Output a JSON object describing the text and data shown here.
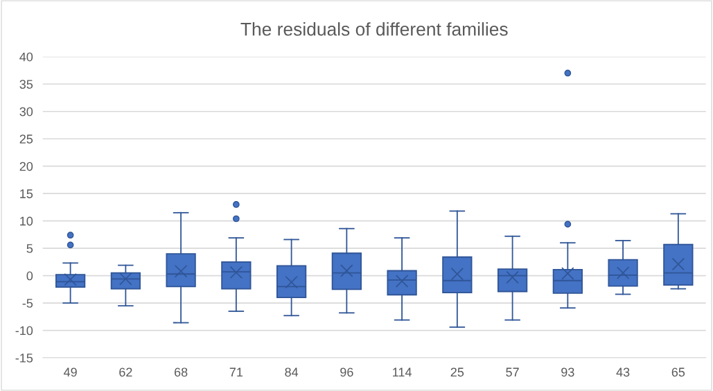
{
  "chart_data": {
    "type": "box",
    "title": "The residuals of different families",
    "categories": [
      "49",
      "62",
      "68",
      "71",
      "84",
      "96",
      "114",
      "25",
      "57",
      "93",
      "43",
      "65"
    ],
    "boxes": [
      {
        "low": -5.0,
        "q1": -2.1,
        "median": -1.1,
        "q3": 0.2,
        "high": 2.3,
        "mean": -0.7,
        "outliers": [
          7.4,
          5.6
        ]
      },
      {
        "low": -5.5,
        "q1": -2.4,
        "median": -0.6,
        "q3": 0.5,
        "high": 1.9,
        "mean": -0.6
      },
      {
        "low": -8.6,
        "q1": -2.0,
        "median": 0.3,
        "q3": 4.0,
        "high": 11.5,
        "mean": 0.8
      },
      {
        "low": -6.5,
        "q1": -2.4,
        "median": 0.7,
        "q3": 2.5,
        "high": 6.9,
        "mean": 0.6,
        "outliers": [
          13.0,
          10.4
        ]
      },
      {
        "low": -7.3,
        "q1": -4.0,
        "median": -2.0,
        "q3": 1.8,
        "high": 6.6,
        "mean": -1.2
      },
      {
        "low": -6.8,
        "q1": -2.5,
        "median": 0.5,
        "q3": 4.1,
        "high": 8.6,
        "mean": 0.9
      },
      {
        "low": -8.1,
        "q1": -3.5,
        "median": -0.8,
        "q3": 0.9,
        "high": 6.9,
        "mean": -1.0
      },
      {
        "low": -9.4,
        "q1": -3.1,
        "median": -0.9,
        "q3": 3.4,
        "high": 11.8,
        "mean": 0.3
      },
      {
        "low": -8.1,
        "q1": -2.9,
        "median": 0.0,
        "q3": 1.2,
        "high": 7.2,
        "mean": -0.3
      },
      {
        "low": -5.9,
        "q1": -3.2,
        "median": -0.9,
        "q3": 1.1,
        "high": 6.0,
        "mean": 0.4,
        "outliers": [
          9.4,
          37.0
        ]
      },
      {
        "low": -3.4,
        "q1": -1.9,
        "median": 0.1,
        "q3": 2.9,
        "high": 6.4,
        "mean": 0.5
      },
      {
        "low": -2.4,
        "q1": -1.7,
        "median": 0.5,
        "q3": 5.7,
        "high": 11.3,
        "mean": 2.1
      }
    ],
    "color": "#4472c4",
    "ylim": [
      -15,
      40
    ],
    "yticks": [
      -15,
      -10,
      -5,
      0,
      5,
      10,
      15,
      20,
      25,
      30,
      35,
      40
    ],
    "grid": "y",
    "marker": "circle",
    "legend": false
  }
}
